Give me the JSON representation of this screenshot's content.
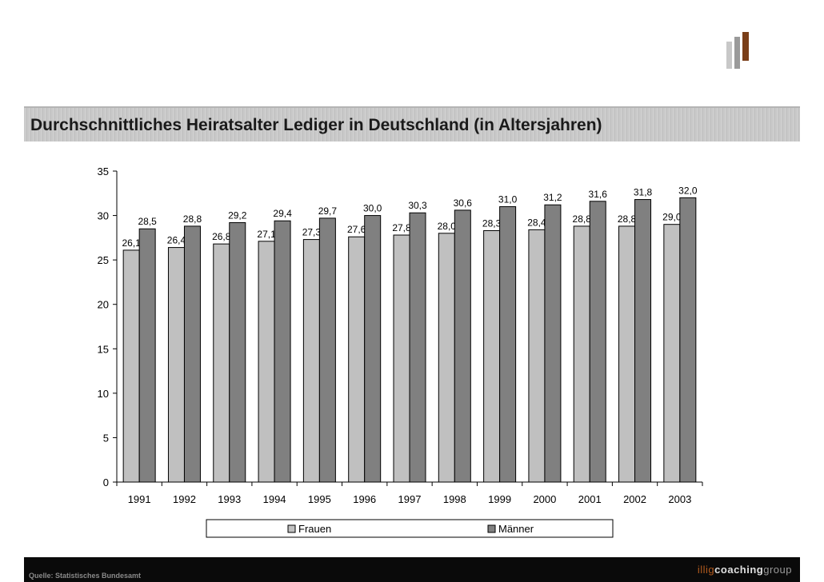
{
  "page": {
    "title": "Durchschnittliches Heiratsalter Lediger in Deutschland (in Altersjahren)",
    "source": "Quelle: Statistisches Bundesamt",
    "brand": {
      "part1": "illig",
      "part2": "coaching",
      "part3": "group"
    }
  },
  "colors": {
    "frauen": "#c0c0c0",
    "maenner": "#808080"
  },
  "chart_data": {
    "type": "bar",
    "title": "",
    "xlabel": "",
    "ylabel": "",
    "categories": [
      "1991",
      "1992",
      "1993",
      "1994",
      "1995",
      "1996",
      "1997",
      "1998",
      "1999",
      "2000",
      "2001",
      "2002",
      "2003"
    ],
    "series": [
      {
        "name": "Frauen",
        "values": [
          26.1,
          26.4,
          26.8,
          27.1,
          27.3,
          27.6,
          27.8,
          28.0,
          28.3,
          28.4,
          28.8,
          28.8,
          29.0
        ],
        "labels": [
          "26,1",
          "26,4",
          "26,8",
          "27,1",
          "27,3",
          "27,6",
          "27,8",
          "28,0",
          "28,3",
          "28,4",
          "28,8",
          "28,8",
          "29,0"
        ]
      },
      {
        "name": "Männer",
        "values": [
          28.5,
          28.8,
          29.2,
          29.4,
          29.7,
          30.0,
          30.3,
          30.6,
          31.0,
          31.2,
          31.6,
          31.8,
          32.0
        ],
        "labels": [
          "28,5",
          "28,8",
          "29,2",
          "29,4",
          "29,7",
          "30,0",
          "30,3",
          "30,6",
          "31,0",
          "31,2",
          "31,6",
          "31,8",
          "32,0"
        ]
      }
    ],
    "ylim": [
      0,
      35
    ],
    "yticks": [
      0,
      5,
      10,
      15,
      20,
      25,
      30,
      35
    ],
    "grid": false,
    "legend": "bottom"
  }
}
